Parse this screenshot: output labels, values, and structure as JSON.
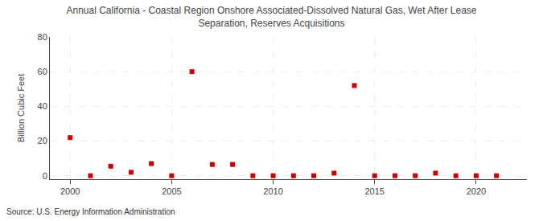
{
  "chart_data": {
    "type": "scatter",
    "title": "Annual California - Coastal Region Onshore Associated-Dissolved Natural Gas, Wet After Lease\nSeparation, Reserves Acquisitions",
    "y_label": "Billion Cubic Feet",
    "annotations": [
      "Source: U.S. Energy Information Administration"
    ],
    "x": [
      2000,
      2001,
      2002,
      2003,
      2004,
      2005,
      2006,
      2007,
      2008,
      2009,
      2010,
      2011,
      2012,
      2013,
      2014,
      2015,
      2016,
      2017,
      2018,
      2019,
      2020,
      2021
    ],
    "values": [
      22.0,
      0.0,
      5.5,
      2.0,
      7.0,
      0.0,
      60.0,
      6.5,
      6.5,
      0.0,
      0.0,
      0.0,
      0.0,
      1.5,
      52.0,
      0.0,
      0.0,
      0.0,
      1.5,
      0.0,
      0.0,
      0.0
    ],
    "color": "#cc0000",
    "marker": "square",
    "xlim": [
      1999.0,
      2022.5
    ],
    "xticks": [
      2000,
      2005,
      2010,
      2015,
      2020
    ],
    "ylim": [
      -2,
      80
    ],
    "yticks": [
      0,
      20,
      40,
      60,
      80
    ],
    "grid": true
  }
}
